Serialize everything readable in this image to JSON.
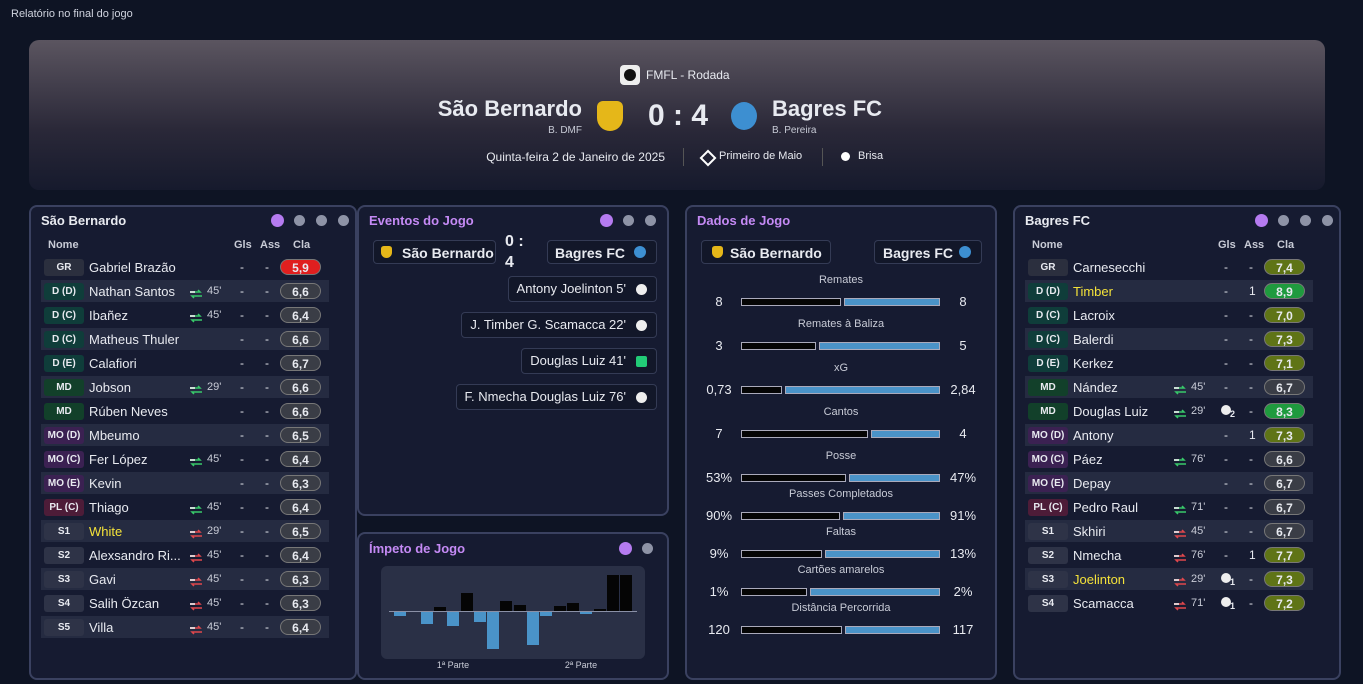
{
  "window_title": "Relatório no final do jogo",
  "header": {
    "competition": "FMFL - Rodada",
    "home": {
      "name": "São Bernardo",
      "manager": "B. DMF"
    },
    "score": "0 : 4",
    "away": {
      "name": "Bagres FC",
      "manager": "B. Pereira"
    },
    "date": "Quinta-feira 2 de Janeiro de 2025",
    "stadium": "Primeiro de Maio",
    "weather": "Brisa"
  },
  "home_lineup": {
    "title": "São Bernardo",
    "columns": [
      "Nome",
      "Gls",
      "Ass",
      "Cla"
    ],
    "rows": [
      {
        "pos": "GR",
        "name": "Gabriel Brazão",
        "sub": null,
        "gls": "-",
        "ass": "-",
        "rating": "5,9"
      },
      {
        "pos": "D (D)",
        "name": "Nathan Santos",
        "sub": "45'",
        "gls": "-",
        "ass": "-",
        "rating": "6,6"
      },
      {
        "pos": "D (C)",
        "name": "Ibañez",
        "sub": "45'",
        "gls": "-",
        "ass": "-",
        "rating": "6,4"
      },
      {
        "pos": "D (C)",
        "name": "Matheus Thuler",
        "sub": null,
        "gls": "-",
        "ass": "-",
        "rating": "6,6"
      },
      {
        "pos": "D (E)",
        "name": "Calafiori",
        "sub": null,
        "gls": "-",
        "ass": "-",
        "rating": "6,7"
      },
      {
        "pos": "MD",
        "name": "Jobson",
        "sub": "29'",
        "gls": "-",
        "ass": "-",
        "rating": "6,6"
      },
      {
        "pos": "MD",
        "name": "Rúben Neves",
        "sub": null,
        "gls": "-",
        "ass": "-",
        "rating": "6,6"
      },
      {
        "pos": "MO (D)",
        "name": "Mbeumo",
        "sub": null,
        "gls": "-",
        "ass": "-",
        "rating": "6,5"
      },
      {
        "pos": "MO (C)",
        "name": "Fer López",
        "sub": "45'",
        "gls": "-",
        "ass": "-",
        "rating": "6,4"
      },
      {
        "pos": "MO (E)",
        "name": "Kevin",
        "sub": null,
        "gls": "-",
        "ass": "-",
        "rating": "6,3"
      },
      {
        "pos": "PL (C)",
        "name": "Thiago",
        "sub": "45'",
        "gls": "-",
        "ass": "-",
        "rating": "6,4"
      },
      {
        "pos": "S1",
        "name": "White",
        "sub": "29'",
        "gls": "-",
        "ass": "-",
        "rating": "6,5",
        "highlight": true
      },
      {
        "pos": "S2",
        "name": "Alexsandro Ri...",
        "sub": "45'",
        "gls": "-",
        "ass": "-",
        "rating": "6,4"
      },
      {
        "pos": "S3",
        "name": "Gavi",
        "sub": "45'",
        "gls": "-",
        "ass": "-",
        "rating": "6,3"
      },
      {
        "pos": "S4",
        "name": "Salih Özcan",
        "sub": "45'",
        "gls": "-",
        "ass": "-",
        "rating": "6,3"
      },
      {
        "pos": "S5",
        "name": "Villa",
        "sub": "45'",
        "gls": "-",
        "ass": "-",
        "rating": "6,4"
      }
    ]
  },
  "events": {
    "title": "Eventos do Jogo",
    "home": "São Bernardo",
    "score": "0 : 4",
    "away": "Bagres FC",
    "items": [
      {
        "text": "Antony Joelinton 5'",
        "icon": "goal"
      },
      {
        "text": "J. Timber G. Scamacca 22'",
        "icon": "goal"
      },
      {
        "text": "Douglas Luiz 41'",
        "icon": "penalty"
      },
      {
        "text": "F. Nmecha Douglas Luiz 76'",
        "icon": "goal"
      }
    ]
  },
  "momentum": {
    "title": "Ímpeto de Jogo",
    "values": [
      -4,
      0,
      -12,
      4,
      -14,
      18,
      -10,
      -38,
      10,
      6,
      -34,
      -4,
      5,
      8,
      -2,
      2,
      37,
      37
    ],
    "labels": [
      "1ª Parte",
      "2ª Parte"
    ]
  },
  "stats": {
    "title": "Dados de Jogo",
    "home": "São Bernardo",
    "away": "Bagres FC",
    "items": [
      {
        "label": "Remates",
        "values": [
          8,
          8
        ]
      },
      {
        "label": "Remates à Baliza",
        "values": [
          3,
          5
        ]
      },
      {
        "label": "xG",
        "values": [
          0.73,
          2.84
        ],
        "value_labels": [
          "0,73",
          "2,84"
        ]
      },
      {
        "label": "Cantos",
        "values": [
          7,
          4
        ]
      },
      {
        "label": "Posse",
        "values": [
          53,
          47
        ],
        "value_labels": [
          "53%",
          "47%"
        ]
      },
      {
        "label": "Passes Completados",
        "values": [
          90,
          91
        ],
        "value_labels": [
          "90%",
          "91%"
        ]
      },
      {
        "label": "Faltas",
        "values": [
          9,
          13
        ],
        "value_labels": [
          "9%",
          "13%"
        ]
      },
      {
        "label": "Cartões amarelos",
        "values": [
          1,
          2
        ],
        "value_labels": [
          "1%",
          "2%"
        ]
      },
      {
        "label": "Distância Percorrida",
        "values": [
          120,
          117
        ]
      }
    ]
  },
  "away_lineup": {
    "title": "Bagres FC",
    "columns": [
      "Nome",
      "Gls",
      "Ass",
      "Cla"
    ],
    "rows": [
      {
        "pos": "GR",
        "name": "Carnesecchi",
        "sub": null,
        "gls": "-",
        "ass": "-",
        "rating": "7,4"
      },
      {
        "pos": "D (D)",
        "name": "Timber",
        "sub": null,
        "gls": "-",
        "ass": "1",
        "rating": "8,9",
        "highlight": true
      },
      {
        "pos": "D (C)",
        "name": "Lacroix",
        "sub": null,
        "gls": "-",
        "ass": "-",
        "rating": "7,0"
      },
      {
        "pos": "D (C)",
        "name": "Balerdi",
        "sub": null,
        "gls": "-",
        "ass": "-",
        "rating": "7,3"
      },
      {
        "pos": "D (E)",
        "name": "Kerkez",
        "sub": null,
        "gls": "-",
        "ass": "-",
        "rating": "7,1"
      },
      {
        "pos": "MD",
        "name": "Nández",
        "sub": "45'",
        "gls": "-",
        "ass": "-",
        "rating": "6,7"
      },
      {
        "pos": "MD",
        "name": "Douglas Luiz",
        "sub": "29'",
        "gls": "2",
        "ass": "-",
        "rating": "8,3"
      },
      {
        "pos": "MO (D)",
        "name": "Antony",
        "sub": null,
        "gls": "-",
        "ass": "1",
        "rating": "7,3"
      },
      {
        "pos": "MO (C)",
        "name": "Páez",
        "sub": "76'",
        "gls": "-",
        "ass": "-",
        "rating": "6,6"
      },
      {
        "pos": "MO (E)",
        "name": "Depay",
        "sub": null,
        "gls": "-",
        "ass": "-",
        "rating": "6,7"
      },
      {
        "pos": "PL (C)",
        "name": "Pedro Raul",
        "sub": "71'",
        "gls": "-",
        "ass": "-",
        "rating": "6,7"
      },
      {
        "pos": "S1",
        "name": "Skhiri",
        "sub": "45'",
        "gls": "-",
        "ass": "-",
        "rating": "6,7"
      },
      {
        "pos": "S2",
        "name": "Nmecha",
        "sub": "76'",
        "gls": "-",
        "ass": "1",
        "rating": "7,7"
      },
      {
        "pos": "S3",
        "name": "Joelinton",
        "sub": "29'",
        "gls": "1",
        "ass": "-",
        "rating": "7,3",
        "highlight": true
      },
      {
        "pos": "S4",
        "name": "Scamacca",
        "sub": "71'",
        "gls": "1",
        "ass": "-",
        "rating": "7,2"
      }
    ]
  }
}
